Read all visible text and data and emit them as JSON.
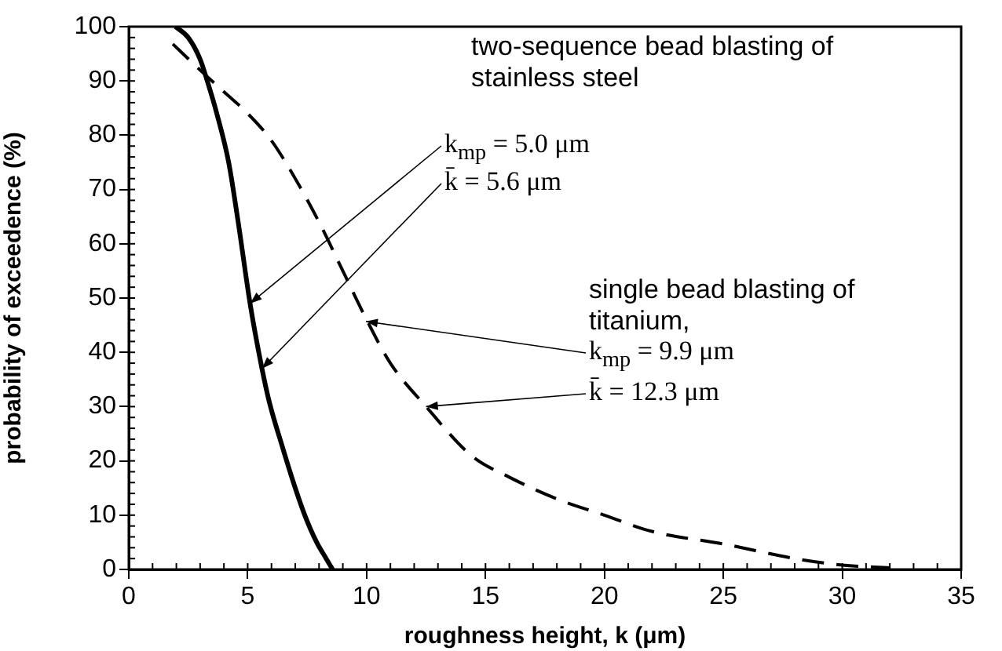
{
  "chart_data": {
    "type": "line",
    "xlabel": "roughness height, k (μm)",
    "ylabel": "probability of exceedence (%)",
    "xlim": [
      0,
      35
    ],
    "xticks": [
      0,
      5,
      10,
      15,
      20,
      25,
      30,
      35
    ],
    "ylim": [
      0,
      100
    ],
    "yticks": [
      0,
      10,
      20,
      30,
      40,
      50,
      60,
      70,
      80,
      90,
      100
    ],
    "grid": false,
    "legend": false,
    "marker": "none",
    "series": [
      {
        "color": "#000000",
        "line_style": "solid",
        "x": [
          1.96,
          2.5,
          3,
          3.3,
          3.7,
          4.2,
          4.6,
          5.1,
          5.6,
          5.9,
          6.5,
          7,
          7.4,
          7.9,
          8.3,
          8.57
        ],
        "values": [
          100,
          98,
          94,
          90,
          84,
          75,
          64,
          49,
          37,
          31,
          22,
          15,
          10,
          5,
          2,
          0
        ]
      },
      {
        "color": "#000000",
        "line_style": "dashed",
        "x": [
          1.85,
          3,
          4,
          5,
          6,
          7,
          8,
          9,
          10,
          11,
          12.5,
          14.4,
          16,
          18,
          20,
          22,
          25,
          28,
          30,
          32
        ],
        "values": [
          96.8,
          92,
          88,
          84,
          79,
          72,
          64,
          55,
          46,
          38,
          30,
          21,
          17,
          13,
          10,
          7,
          4.7,
          2,
          0.8,
          0.3
        ]
      }
    ],
    "annotations": [
      "two-sequence bead blasting of stainless steel",
      {
        "text": "k$_{mp}$ = 5.0 μm",
        "x": 5.1,
        "y": 49
      },
      {
        "text": "k̄ = 5.6 μm",
        "x": 5.6,
        "y": 37
      },
      "single bead blasting of titanium,",
      {
        "text": "k$_{mp}$ = 9.9 μm",
        "x": 9.97,
        "y": 45.7
      },
      {
        "text": "k̄ = 12.3 μm",
        "x": 12.5,
        "y": 30
      }
    ]
  }
}
